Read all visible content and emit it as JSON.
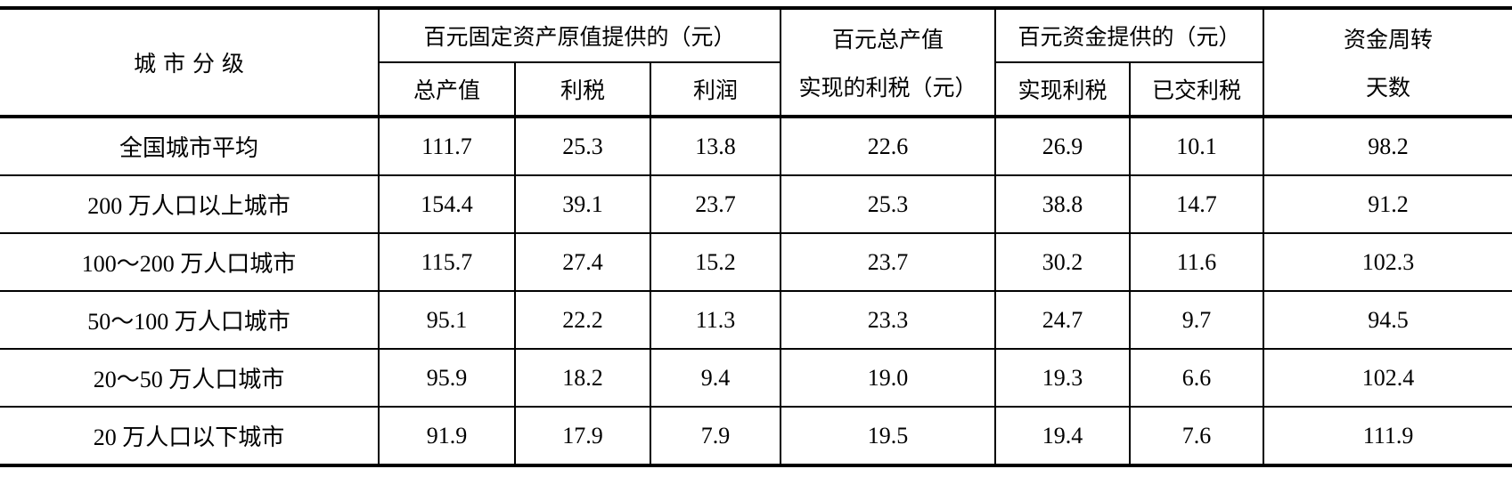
{
  "table": {
    "header": {
      "city_class": "城 市 分 级",
      "group_fixed_assets": "百元固定资产原值提供的（元）",
      "gross_output": "总产值",
      "profit_tax": "利税",
      "profit": "利润",
      "output_profit_tax_line1": "百元总产值",
      "output_profit_tax_line2": "实现的利税（元）",
      "group_funds": "百元资金提供的（元）",
      "realized_profit_tax": "实现利税",
      "paid_profit_tax": "已交利税",
      "turnover_line1": "资金周转",
      "turnover_line2": "天数"
    },
    "rows": [
      [
        "全国城市平均",
        "111.7",
        "25.3",
        "13.8",
        "22.6",
        "26.9",
        "10.1",
        "98.2"
      ],
      [
        "200 万人口以上城市",
        "154.4",
        "39.1",
        "23.7",
        "25.3",
        "38.8",
        "14.7",
        "91.2"
      ],
      [
        "100～200 万人口城市",
        "115.7",
        "27.4",
        "15.2",
        "23.7",
        "30.2",
        "11.6",
        "102.3"
      ],
      [
        "50～100 万人口城市",
        "95.1",
        "22.2",
        "11.3",
        "23.3",
        "24.7",
        "9.7",
        "94.5"
      ],
      [
        "20～50 万人口城市",
        "95.9",
        "18.2",
        "9.4",
        "19.0",
        "19.3",
        "6.6",
        "102.4"
      ],
      [
        "20 万人口以下城市",
        "91.9",
        "17.9",
        "7.9",
        "19.5",
        "19.4",
        "7.6",
        "111.9"
      ]
    ]
  }
}
